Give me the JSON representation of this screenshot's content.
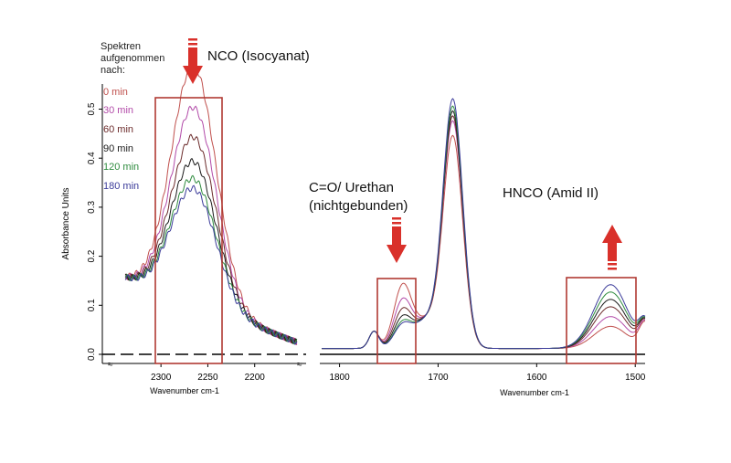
{
  "legend": {
    "title_lines": [
      "Spektren",
      "aufgenommen",
      "nach:"
    ],
    "items": [
      {
        "label": "0 min",
        "color": "#c0504d"
      },
      {
        "label": "30 min",
        "color": "#b24aa8"
      },
      {
        "label": "60 min",
        "color": "#6b2a2a"
      },
      {
        "label": "90 min",
        "color": "#1a1a1a"
      },
      {
        "label": "120 min",
        "color": "#2e8b3e"
      },
      {
        "label": "180 min",
        "color": "#3b3b9a"
      }
    ]
  },
  "annotations": {
    "nco": "NCO (Isocyanat)",
    "urethan_line1": "C=O/ Urethan",
    "urethan_line2": "(nichtgebunden)",
    "amid": "HNCO (Amid II)"
  },
  "colors": {
    "highlight_box": "#b03a33",
    "arrow": "#d9302a"
  },
  "chart_data": {
    "type": "line",
    "ylabel": "Absorbance Units",
    "xlabel_left": "Wavenumber cm-1",
    "xlabel_right": "Wavenumber cm-1",
    "y_ticks": [
      "0.0",
      "0.1",
      "0.2",
      "0.3",
      "0.4",
      "0.5"
    ],
    "ylim": [
      0,
      0.55
    ],
    "left_panel": {
      "xlim": [
        2345,
        2150
      ],
      "x_ticks": [
        "2300",
        "2250",
        "2200"
      ],
      "peak_wavenumber": 2265,
      "peak_absorbance": {
        "0 min": 0.515,
        "30 min": 0.43,
        "60 min": 0.37,
        "90 min": 0.32,
        "120 min": 0.285,
        "180 min": 0.265
      }
    },
    "right_panel": {
      "xlim": [
        1820,
        1490
      ],
      "x_ticks": [
        "1800",
        "1700",
        "1600",
        "1500"
      ],
      "peak_1685_absorbance": {
        "0 min": 0.43,
        "30 min": 0.46,
        "60 min": 0.47,
        "90 min": 0.48,
        "120 min": 0.49,
        "180 min": 0.505
      },
      "peak_1735_absorbance": {
        "0 min": 0.14,
        "30 min": 0.11,
        "60 min": 0.09,
        "90 min": 0.075,
        "120 min": 0.065,
        "180 min": 0.06
      },
      "peak_1525_absorbance": {
        "0 min": 0.045,
        "30 min": 0.065,
        "60 min": 0.085,
        "90 min": 0.1,
        "120 min": 0.115,
        "180 min": 0.13
      }
    }
  }
}
